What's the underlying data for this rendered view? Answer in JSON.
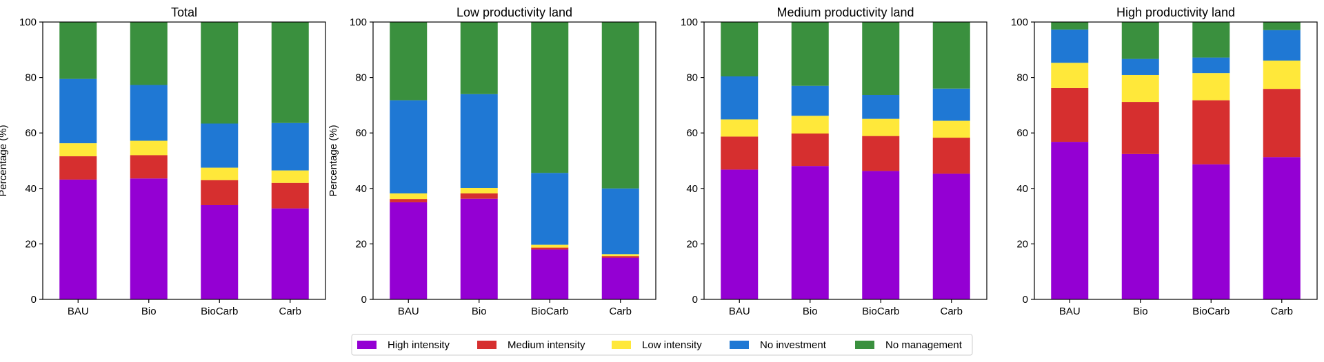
{
  "chart_data": [
    {
      "type": "bar",
      "stacked": true,
      "title": "Total",
      "xlabel": "",
      "ylabel": "Percentage (%)",
      "ylim": [
        0,
        100
      ],
      "yticks": [
        0,
        20,
        40,
        60,
        80,
        100
      ],
      "categories": [
        "BAU",
        "Bio",
        "BioCarb",
        "Carb"
      ],
      "series": [
        {
          "name": "High intensity",
          "values": [
            43.2,
            43.6,
            34.0,
            32.8
          ]
        },
        {
          "name": "Medium intensity",
          "values": [
            8.4,
            8.4,
            9.0,
            9.2
          ]
        },
        {
          "name": "Low intensity",
          "values": [
            4.7,
            5.2,
            4.5,
            4.5
          ]
        },
        {
          "name": "No investment",
          "values": [
            23.2,
            20.1,
            15.9,
            17.1
          ]
        },
        {
          "name": "No management",
          "values": [
            20.5,
            22.7,
            36.6,
            36.4
          ]
        }
      ]
    },
    {
      "type": "bar",
      "stacked": true,
      "title": "Low productivity land",
      "xlabel": "",
      "ylabel": "Percentage (%)",
      "ylim": [
        0,
        100
      ],
      "yticks": [
        0,
        20,
        40,
        60,
        80,
        100
      ],
      "categories": [
        "BAU",
        "Bio",
        "BioCarb",
        "Carb"
      ],
      "series": [
        {
          "name": "High intensity",
          "values": [
            35.0,
            36.3,
            18.0,
            15.0
          ]
        },
        {
          "name": "Medium intensity",
          "values": [
            1.2,
            1.9,
            0.7,
            0.6
          ]
        },
        {
          "name": "Low intensity",
          "values": [
            2.0,
            2.0,
            1.0,
            0.7
          ]
        },
        {
          "name": "No investment",
          "values": [
            33.6,
            33.8,
            25.9,
            23.7
          ]
        },
        {
          "name": "No management",
          "values": [
            28.2,
            26.0,
            54.4,
            60.0
          ]
        }
      ]
    },
    {
      "type": "bar",
      "stacked": true,
      "title": "Medium productivity land",
      "xlabel": "",
      "ylabel": "",
      "ylim": [
        0,
        100
      ],
      "yticks": [
        0,
        20,
        40,
        60,
        80,
        100
      ],
      "categories": [
        "BAU",
        "Bio",
        "BioCarb",
        "Carb"
      ],
      "series": [
        {
          "name": "High intensity",
          "values": [
            46.8,
            48.1,
            46.3,
            45.3
          ]
        },
        {
          "name": "Medium intensity",
          "values": [
            11.9,
            11.7,
            12.6,
            13.0
          ]
        },
        {
          "name": "Low intensity",
          "values": [
            6.2,
            6.4,
            6.2,
            6.1
          ]
        },
        {
          "name": "No investment",
          "values": [
            15.5,
            10.8,
            8.6,
            11.6
          ]
        },
        {
          "name": "No management",
          "values": [
            19.6,
            23.0,
            26.3,
            24.0
          ]
        }
      ]
    },
    {
      "type": "bar",
      "stacked": true,
      "title": "High productivity land",
      "xlabel": "",
      "ylabel": "",
      "ylim": [
        0,
        100
      ],
      "yticks": [
        0,
        20,
        40,
        60,
        80,
        100
      ],
      "categories": [
        "BAU",
        "Bio",
        "BioCarb",
        "Carb"
      ],
      "series": [
        {
          "name": "High intensity",
          "values": [
            56.8,
            52.4,
            48.7,
            51.3
          ]
        },
        {
          "name": "Medium intensity",
          "values": [
            19.4,
            18.8,
            23.1,
            24.6
          ]
        },
        {
          "name": "Low intensity",
          "values": [
            9.1,
            9.7,
            9.8,
            10.2
          ]
        },
        {
          "name": "No investment",
          "values": [
            12.0,
            5.8,
            5.6,
            11.0
          ]
        },
        {
          "name": "No management",
          "values": [
            2.7,
            13.3,
            12.8,
            2.9
          ]
        }
      ]
    }
  ],
  "colors": {
    "High intensity": "#9400D3",
    "Medium intensity": "#D62F2F",
    "Low intensity": "#FFE83A",
    "No investment": "#1F78D4",
    "No management": "#3A903E"
  },
  "legend": {
    "position": "bottom-center",
    "items": [
      "High intensity",
      "Medium intensity",
      "Low intensity",
      "No investment",
      "No management"
    ]
  }
}
